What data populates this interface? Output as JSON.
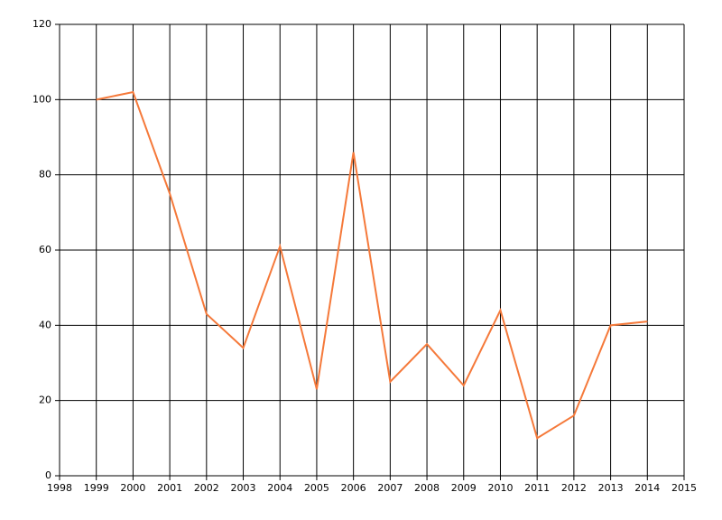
{
  "chart_data": {
    "type": "line",
    "x": [
      1999,
      2000,
      2001,
      2002,
      2003,
      2004,
      2005,
      2006,
      2007,
      2008,
      2009,
      2010,
      2011,
      2012,
      2013,
      2014
    ],
    "series": [
      {
        "color": "#f5793a",
        "values": [
          100,
          102,
          75,
          43,
          34,
          61,
          23,
          86,
          25,
          35,
          24,
          44,
          10,
          16,
          40,
          41
        ]
      }
    ],
    "xlim": [
      1998,
      2015
    ],
    "xticks": [
      1998,
      1999,
      2000,
      2001,
      2002,
      2003,
      2004,
      2005,
      2006,
      2007,
      2008,
      2009,
      2010,
      2011,
      2012,
      2013,
      2014,
      2015
    ],
    "ylim": [
      0,
      120
    ],
    "yticks": [
      0,
      20,
      40,
      60,
      80,
      100,
      120
    ],
    "grid": true
  }
}
